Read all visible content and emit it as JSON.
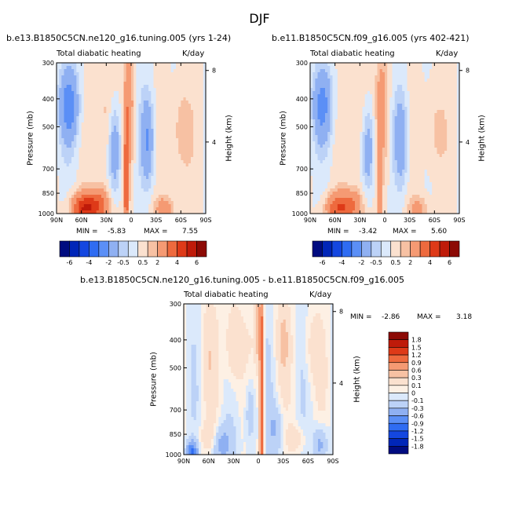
{
  "figure": {
    "title": "DJF"
  },
  "colors": {
    "panel_base": "#d4e6fb",
    "frame": "#000000"
  },
  "chart_data": [
    {
      "type": "heatmap",
      "experiment": "b.e13.B1850C5CN.ne120_g16.tuning.005 (yrs 1-24)",
      "subtitle": "Total diabatic heating",
      "units": "K/day",
      "xlabel": "",
      "ylabel": "Pressure (mb)",
      "y2label": "Height (km)",
      "x_ticks": [
        "90N",
        "60N",
        "30N",
        "0",
        "30S",
        "60S",
        "90S"
      ],
      "y_ticks": [
        "300",
        "400",
        "500",
        "700",
        "850",
        "1000"
      ],
      "y2_ticks": [
        "8",
        "4"
      ],
      "xlim": [
        90,
        -90
      ],
      "ylim_mb": [
        1000,
        300
      ],
      "y_scale": "log",
      "stats": {
        "min_label": "MIN =",
        "min": "-5.83",
        "max_label": "MAX =",
        "max": "7.55"
      },
      "colorbar": {
        "orientation": "horizontal",
        "labels": [
          "-6",
          "-4",
          "-2",
          "-0.5",
          "0.5",
          "2",
          "4",
          "6"
        ],
        "colors": [
          "#000c80",
          "#0026b8",
          "#1447e0",
          "#2f6cf2",
          "#5b8ff6",
          "#8fb0f2",
          "#bcd2f7",
          "#dbe9fb",
          "#fbe1cf",
          "#f7c1a3",
          "#f59a73",
          "#ee6a3e",
          "#de3a18",
          "#bf1b0a",
          "#8c0a05"
        ]
      },
      "features": [
        {
          "kind": "blob",
          "lat": 2,
          "p": 420,
          "width": 6,
          "depth": 0.55,
          "value": 1.5
        },
        {
          "kind": "blob",
          "lat": 6,
          "p": 820,
          "width": 3,
          "depth": 0.6,
          "value": 2.5
        },
        {
          "kind": "blob",
          "lat": 58,
          "p": 960,
          "width": 14,
          "depth": 0.12,
          "value": 3.5
        },
        {
          "kind": "blob",
          "lat": 40,
          "p": 940,
          "width": 14,
          "depth": 0.14,
          "value": 2.5
        },
        {
          "kind": "blob",
          "lat": -40,
          "p": 960,
          "width": 12,
          "depth": 0.1,
          "value": 1.5
        },
        {
          "kind": "blob",
          "lat": -60,
          "p": 520,
          "width": 12,
          "depth": 0.4,
          "value": 1.0
        },
        {
          "kind": "blob",
          "lat": 30,
          "p": 500,
          "width": 10,
          "depth": 0.5,
          "value": 1.0
        },
        {
          "kind": "blob",
          "lat": -20,
          "p": 550,
          "width": 8,
          "depth": 0.35,
          "value": -2.0
        },
        {
          "kind": "blob",
          "lat": 20,
          "p": 600,
          "width": 8,
          "depth": 0.35,
          "value": -2.0
        },
        {
          "kind": "blob",
          "lat": 75,
          "p": 420,
          "width": 12,
          "depth": 0.3,
          "value": -2.5
        }
      ]
    },
    {
      "type": "heatmap",
      "experiment": "b.e11.B1850C5CN.f09_g16.005 (yrs 402-421)",
      "subtitle": "Total diabatic heating",
      "units": "K/day",
      "xlabel": "",
      "ylabel": "Pressure (mb)",
      "y2label": "Height (km)",
      "x_ticks": [
        "90N",
        "60N",
        "30N",
        "0",
        "30S",
        "60S",
        "90S"
      ],
      "y_ticks": [
        "300",
        "400",
        "500",
        "700",
        "850",
        "1000"
      ],
      "y2_ticks": [
        "8",
        "4"
      ],
      "xlim": [
        90,
        -90
      ],
      "ylim_mb": [
        1000,
        300
      ],
      "y_scale": "log",
      "stats": {
        "min_label": "MIN =",
        "min": "-3.42",
        "max_label": "MAX =",
        "max": "5.60"
      },
      "colorbar": {
        "orientation": "horizontal",
        "labels": [
          "-6",
          "-4",
          "-2",
          "-0.5",
          "0.5",
          "2",
          "4",
          "6"
        ],
        "colors": [
          "#000c80",
          "#0026b8",
          "#1447e0",
          "#2f6cf2",
          "#5b8ff6",
          "#8fb0f2",
          "#bcd2f7",
          "#dbe9fb",
          "#fbe1cf",
          "#f7c1a3",
          "#f59a73",
          "#ee6a3e",
          "#de3a18",
          "#bf1b0a",
          "#8c0a05"
        ]
      },
      "features": [
        {
          "kind": "blob",
          "lat": 2,
          "p": 420,
          "width": 8,
          "depth": 0.55,
          "value": 1.2
        },
        {
          "kind": "blob",
          "lat": 6,
          "p": 820,
          "width": 3,
          "depth": 0.6,
          "value": 1.5
        },
        {
          "kind": "blob",
          "lat": 58,
          "p": 960,
          "width": 14,
          "depth": 0.12,
          "value": 2.5
        },
        {
          "kind": "blob",
          "lat": 40,
          "p": 940,
          "width": 14,
          "depth": 0.14,
          "value": 2.0
        },
        {
          "kind": "blob",
          "lat": -40,
          "p": 960,
          "width": 12,
          "depth": 0.1,
          "value": 1.2
        },
        {
          "kind": "blob",
          "lat": -60,
          "p": 520,
          "width": 12,
          "depth": 0.4,
          "value": 0.8
        },
        {
          "kind": "blob",
          "lat": 30,
          "p": 500,
          "width": 10,
          "depth": 0.5,
          "value": 0.8
        },
        {
          "kind": "blob",
          "lat": -20,
          "p": 550,
          "width": 8,
          "depth": 0.35,
          "value": -1.8
        },
        {
          "kind": "blob",
          "lat": 20,
          "p": 600,
          "width": 8,
          "depth": 0.35,
          "value": -1.8
        },
        {
          "kind": "blob",
          "lat": 75,
          "p": 420,
          "width": 12,
          "depth": 0.3,
          "value": -2.2
        }
      ]
    },
    {
      "type": "heatmap",
      "experiment": "b.e13.B1850C5CN.ne120_g16.tuning.005 - b.e11.B1850C5CN.f09_g16.005",
      "subtitle": "Total diabatic heating",
      "units": "K/day",
      "xlabel": "",
      "ylabel": "Pressure (mb)",
      "y2label": "Height (km)",
      "x_ticks": [
        "90N",
        "60N",
        "30N",
        "0",
        "30S",
        "60S",
        "90S"
      ],
      "y_ticks": [
        "300",
        "400",
        "500",
        "700",
        "850",
        "1000"
      ],
      "y2_ticks": [
        "8",
        "4"
      ],
      "xlim": [
        90,
        -90
      ],
      "ylim_mb": [
        1000,
        300
      ],
      "y_scale": "log",
      "stats": {
        "min_label": "MIN =",
        "min": "-2.86",
        "max_label": "MAX =",
        "max": "3.18"
      },
      "colorbar": {
        "orientation": "vertical",
        "labels": [
          "1.8",
          "1.5",
          "1.2",
          "0.9",
          "0.6",
          "0.3",
          "0.1",
          "0",
          "-0.1",
          "-0.3",
          "-0.6",
          "-0.9",
          "-1.2",
          "-1.5",
          "-1.8"
        ],
        "colors": [
          "#8c0a05",
          "#bf1b0a",
          "#de3a18",
          "#ee6a3e",
          "#f59a73",
          "#f7c1a3",
          "#fbe1cf",
          "#fdf0e4",
          "#dbe9fb",
          "#bcd2f7",
          "#8fb0f2",
          "#5b8ff6",
          "#2f6cf2",
          "#1447e0",
          "#0026b8",
          "#000c80"
        ]
      },
      "features": [
        {
          "kind": "blob",
          "lat": -4,
          "p": 640,
          "width": 2.5,
          "depth": 1.0,
          "value": 1.3
        },
        {
          "kind": "blob",
          "lat": 0,
          "p": 360,
          "width": 4,
          "depth": 0.3,
          "value": 0.5
        },
        {
          "kind": "blob",
          "lat": 30,
          "p": 420,
          "width": 10,
          "depth": 0.35,
          "value": 0.35
        },
        {
          "kind": "blob",
          "lat": -30,
          "p": 400,
          "width": 8,
          "depth": 0.3,
          "value": 0.3
        },
        {
          "kind": "blob",
          "lat": 60,
          "p": 450,
          "width": 10,
          "depth": 0.4,
          "value": 0.2
        },
        {
          "kind": "blob",
          "lat": -65,
          "p": 430,
          "width": 10,
          "depth": 0.3,
          "value": 0.2
        },
        {
          "kind": "blob",
          "lat": 45,
          "p": 920,
          "width": 14,
          "depth": 0.15,
          "value": -0.4
        },
        {
          "kind": "blob",
          "lat": 80,
          "p": 980,
          "width": 6,
          "depth": 0.08,
          "value": -1.0
        },
        {
          "kind": "blob",
          "lat": 10,
          "p": 700,
          "width": 6,
          "depth": 0.3,
          "value": -0.3
        },
        {
          "kind": "blob",
          "lat": -20,
          "p": 820,
          "width": 10,
          "depth": 0.2,
          "value": -0.3
        },
        {
          "kind": "blob",
          "lat": -75,
          "p": 920,
          "width": 8,
          "depth": 0.15,
          "value": -0.4
        },
        {
          "kind": "blob",
          "lat": 60,
          "p": 870,
          "width": 10,
          "depth": 0.12,
          "value": 0.3
        },
        {
          "kind": "blob",
          "lat": -45,
          "p": 880,
          "width": 10,
          "depth": 0.1,
          "value": 0.25
        }
      ]
    }
  ]
}
